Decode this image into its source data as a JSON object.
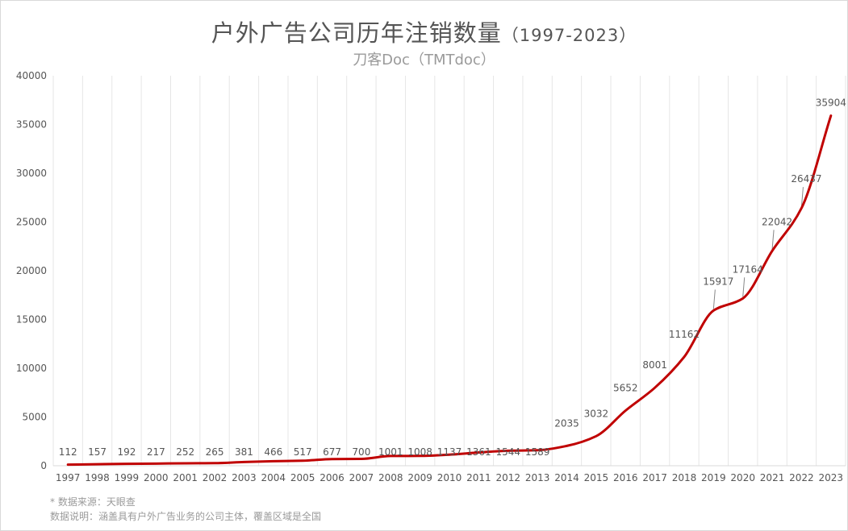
{
  "chart_data": {
    "type": "line",
    "title": "户外广告公司历年注销数量",
    "title_range": "（1997-2023）",
    "subtitle": "刀客Doc（TMTdoc）",
    "xlabel": "",
    "ylabel": "",
    "categories": [
      "1997",
      "1998",
      "1999",
      "2000",
      "2001",
      "2002",
      "2003",
      "2004",
      "2005",
      "2006",
      "2007",
      "2008",
      "2009",
      "2010",
      "2011",
      "2012",
      "2013",
      "2014",
      "2015",
      "2016",
      "2017",
      "2018",
      "2019",
      "2020",
      "2021",
      "2022",
      "2023"
    ],
    "series": [
      {
        "values": [
          112,
          157,
          192,
          217,
          252,
          265,
          381,
          466,
          517,
          677,
          700,
          1001,
          1008,
          1137,
          1361,
          1544,
          1589,
          2035,
          3032,
          5652,
          8001,
          11162,
          15917,
          17164,
          22042,
          26437,
          35904
        ]
      }
    ],
    "ylim": [
      0,
      40000
    ],
    "yticks": [
      0,
      5000,
      10000,
      15000,
      20000,
      25000,
      30000,
      35000,
      40000
    ],
    "grid": "vertical",
    "line_color": "#c00000",
    "legend": "none"
  },
  "footnotes": {
    "source": "* 数据来源：天眼查",
    "description": "数据说明：涵盖具有户外广告业务的公司主体，覆盖区域是全国"
  }
}
